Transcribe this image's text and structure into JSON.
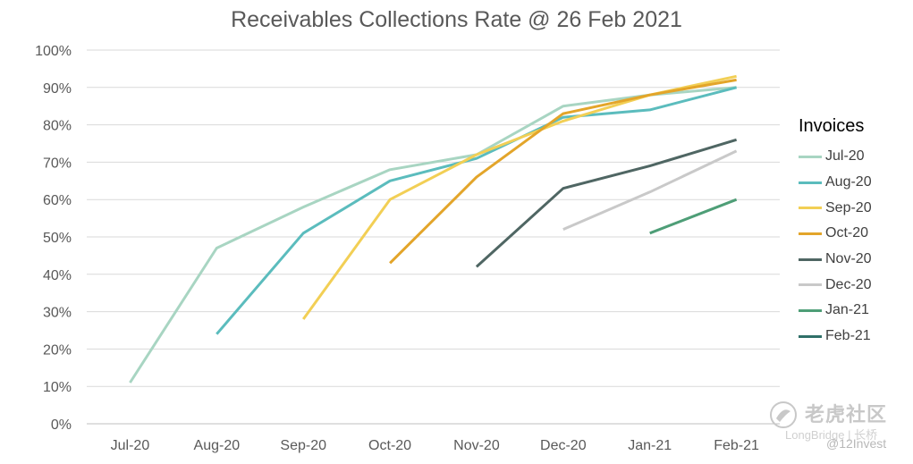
{
  "chart_data": {
    "type": "line",
    "title": "Receivables Collections Rate @ 26 Feb 2021",
    "categories": [
      "Jul-20",
      "Aug-20",
      "Sep-20",
      "Oct-20",
      "Nov-20",
      "Dec-20",
      "Jan-21",
      "Feb-21"
    ],
    "y_ticks": [
      "0%",
      "10%",
      "20%",
      "30%",
      "40%",
      "50%",
      "60%",
      "70%",
      "80%",
      "90%",
      "100%"
    ],
    "ylim": [
      0,
      100
    ],
    "grid": true,
    "legend_title": "Invoices",
    "legend_position": "right",
    "series": [
      {
        "name": "Jul-20",
        "color": "#a8d5c2",
        "values": [
          11,
          47,
          58,
          68,
          72,
          85,
          88,
          90
        ]
      },
      {
        "name": "Aug-20",
        "color": "#5bbcbd",
        "values": [
          null,
          24,
          51,
          65,
          71,
          82,
          84,
          90
        ]
      },
      {
        "name": "Sep-20",
        "color": "#f2cf55",
        "values": [
          null,
          null,
          28,
          60,
          72,
          81,
          88,
          93
        ]
      },
      {
        "name": "Oct-20",
        "color": "#e3a52a",
        "values": [
          null,
          null,
          null,
          43,
          66,
          83,
          88,
          92
        ]
      },
      {
        "name": "Nov-20",
        "color": "#4f6663",
        "values": [
          null,
          null,
          null,
          null,
          42,
          63,
          69,
          76
        ]
      },
      {
        "name": "Dec-20",
        "color": "#c9c9c9",
        "values": [
          null,
          null,
          null,
          null,
          null,
          52,
          62,
          73
        ]
      },
      {
        "name": "Jan-21",
        "color": "#4e9e77",
        "values": [
          null,
          null,
          null,
          null,
          null,
          null,
          51,
          60
        ]
      },
      {
        "name": "Feb-21",
        "color": "#2f6f68",
        "values": [
          null,
          null,
          null,
          null,
          null,
          null,
          null,
          null
        ]
      }
    ]
  },
  "watermark": {
    "logo_text": "老虎社区",
    "brand": "LongBridge | 长桥",
    "handle": "@12Invest"
  }
}
